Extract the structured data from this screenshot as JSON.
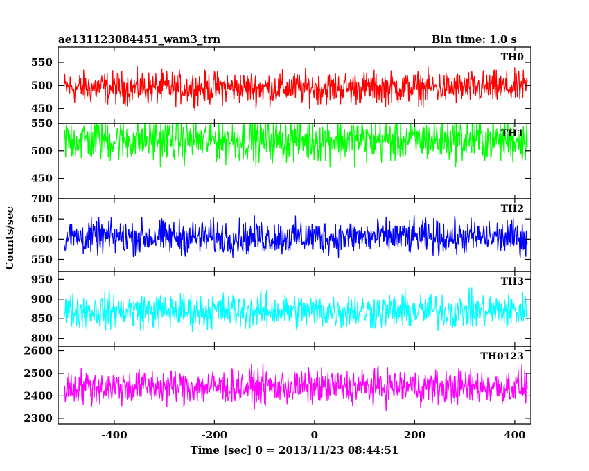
{
  "header": {
    "title": "ae131123084451_wam3_trn",
    "bin_time": "Bin time: 1.0 s"
  },
  "chart_data": {
    "type": "line",
    "xlabel": "Time [sec] 0 = 2013/11/23 08:44:51",
    "ylabel": "Counts/sec",
    "xlim": [
      -512,
      432
    ],
    "x_start": -500,
    "x_end": 425,
    "x_step": 1,
    "x_ticks": [
      -400,
      -200,
      0,
      200,
      400
    ],
    "panels": [
      {
        "name": "TH0",
        "color": "#ff0000",
        "ylim": [
          418,
          583
        ],
        "yticks": [
          450,
          500,
          550
        ],
        "mean": 495,
        "noise": 25
      },
      {
        "name": "TH1",
        "color": "#00ff00",
        "ylim": [
          413,
          550
        ],
        "yticks": [
          450,
          500,
          550
        ],
        "mean": 520,
        "noise": 28
      },
      {
        "name": "TH2",
        "color": "#0000ff",
        "ylim": [
          520,
          700
        ],
        "yticks": [
          550,
          600,
          650,
          700
        ],
        "mean": 605,
        "noise": 30
      },
      {
        "name": "TH3",
        "color": "#00ffff",
        "ylim": [
          780,
          970
        ],
        "yticks": [
          800,
          850,
          900,
          950
        ],
        "mean": 870,
        "noise": 32
      },
      {
        "name": "TH0123",
        "color": "#ff00ff",
        "ylim": [
          2275,
          2620
        ],
        "yticks": [
          2300,
          2400,
          2500,
          2600
        ],
        "mean": 2440,
        "noise": 55
      }
    ]
  }
}
